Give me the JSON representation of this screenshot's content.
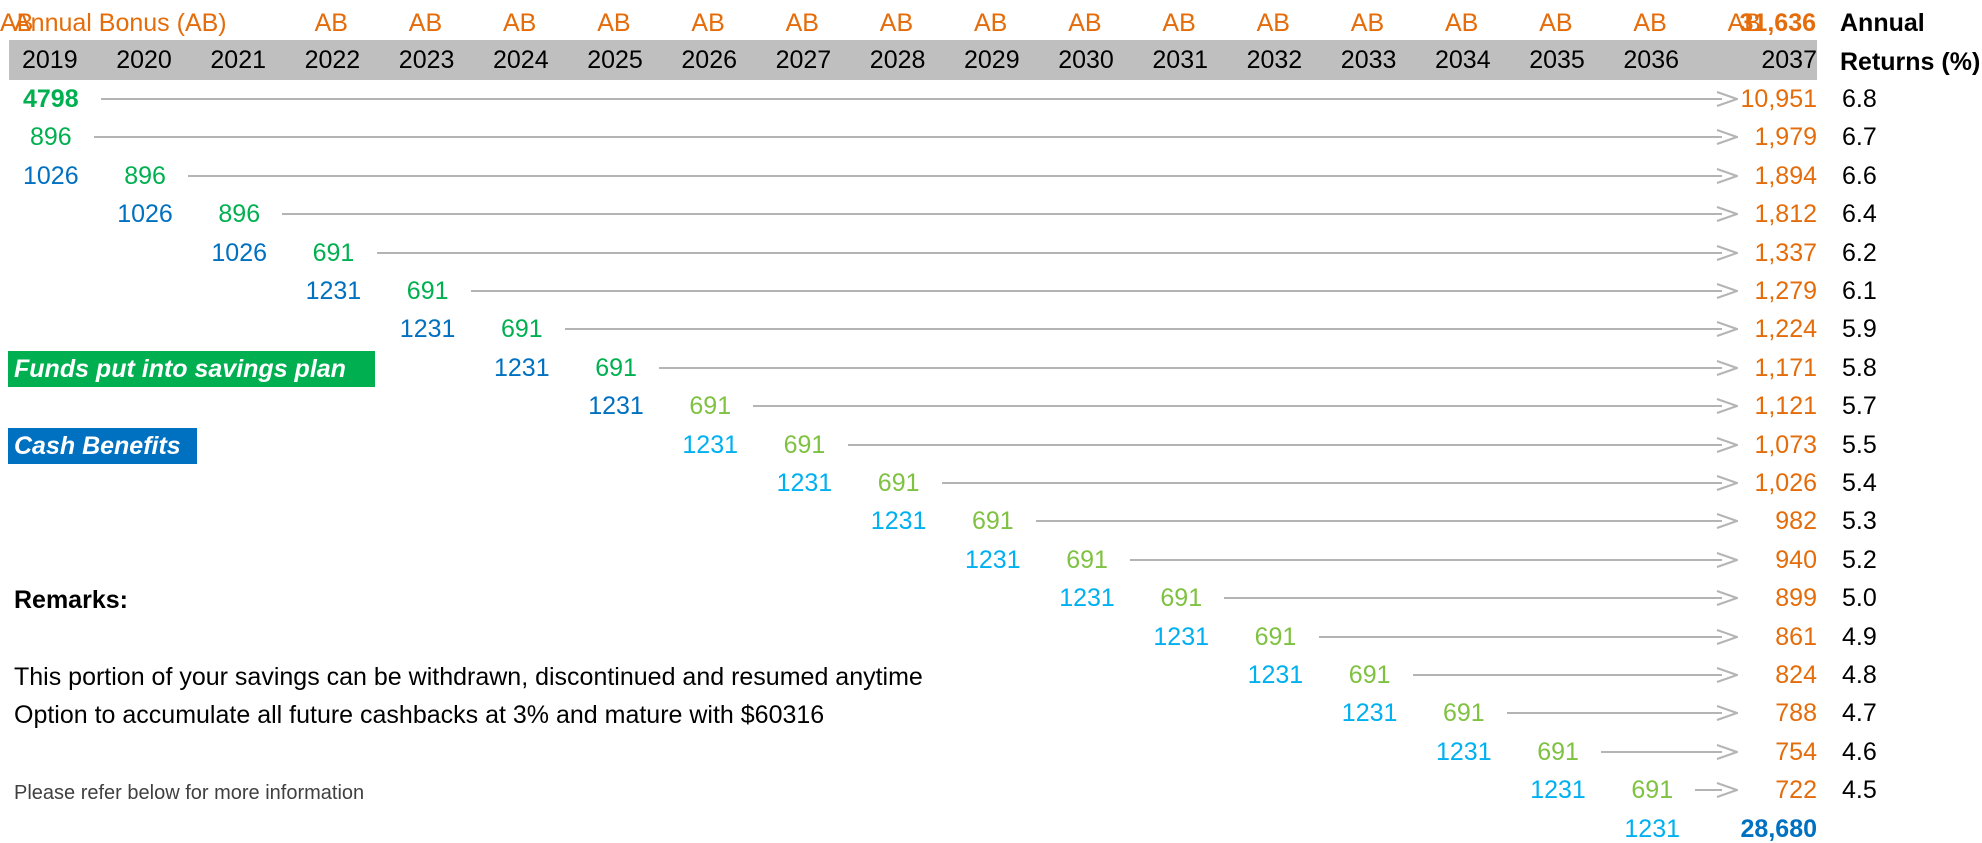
{
  "header": {
    "annual_bonus_label": "Annual Bonus (AB)",
    "ab_labels": [
      "AB",
      "AB",
      "AB",
      "AB",
      "AB",
      "AB",
      "AB",
      "AB",
      "AB",
      "AB",
      "AB",
      "AB",
      "AB",
      "AB",
      "AB",
      "AB",
      "AB"
    ],
    "total_top": "31,636",
    "returns_label_1": "Annual",
    "returns_label_2": "Returns (%)"
  },
  "years": [
    "2019",
    "2020",
    "2021",
    "2022",
    "2023",
    "2024",
    "2025",
    "2026",
    "2027",
    "2028",
    "2029",
    "2030",
    "2031",
    "2032",
    "2033",
    "2034",
    "2035",
    "2036",
    "2037"
  ],
  "rows": [
    {
      "cells": [
        {
          "col": 0,
          "text": "4798",
          "color": "green",
          "bold": true
        }
      ],
      "result": "10,951",
      "rate": "6.8"
    },
    {
      "cells": [
        {
          "col": 0,
          "text": "896",
          "color": "green"
        }
      ],
      "result": "1,979",
      "rate": "6.7"
    },
    {
      "cells": [
        {
          "col": 0,
          "text": "1026",
          "color": "blue"
        },
        {
          "col": 1,
          "text": "896",
          "color": "green"
        }
      ],
      "result": "1,894",
      "rate": "6.6"
    },
    {
      "cells": [
        {
          "col": 1,
          "text": "1026",
          "color": "blue"
        },
        {
          "col": 2,
          "text": "896",
          "color": "green"
        }
      ],
      "result": "1,812",
      "rate": "6.4"
    },
    {
      "cells": [
        {
          "col": 2,
          "text": "1026",
          "color": "blue"
        },
        {
          "col": 3,
          "text": "691",
          "color": "green"
        }
      ],
      "result": "1,337",
      "rate": "6.2"
    },
    {
      "cells": [
        {
          "col": 3,
          "text": "1231",
          "color": "blue"
        },
        {
          "col": 4,
          "text": "691",
          "color": "green"
        }
      ],
      "result": "1,279",
      "rate": "6.1"
    },
    {
      "cells": [
        {
          "col": 4,
          "text": "1231",
          "color": "blue"
        },
        {
          "col": 5,
          "text": "691",
          "color": "green"
        }
      ],
      "result": "1,224",
      "rate": "5.9"
    },
    {
      "cells": [
        {
          "col": 5,
          "text": "1231",
          "color": "blue"
        },
        {
          "col": 6,
          "text": "691",
          "color": "green"
        }
      ],
      "result": "1,171",
      "rate": "5.8"
    },
    {
      "cells": [
        {
          "col": 6,
          "text": "1231",
          "color": "blue"
        },
        {
          "col": 7,
          "text": "691",
          "color": "lgreen"
        }
      ],
      "result": "1,121",
      "rate": "5.7"
    },
    {
      "cells": [
        {
          "col": 7,
          "text": "1231",
          "color": "lblue"
        },
        {
          "col": 8,
          "text": "691",
          "color": "lgreen"
        }
      ],
      "result": "1,073",
      "rate": "5.5"
    },
    {
      "cells": [
        {
          "col": 8,
          "text": "1231",
          "color": "lblue"
        },
        {
          "col": 9,
          "text": "691",
          "color": "lgreen"
        }
      ],
      "result": "1,026",
      "rate": "5.4"
    },
    {
      "cells": [
        {
          "col": 9,
          "text": "1231",
          "color": "lblue"
        },
        {
          "col": 10,
          "text": "691",
          "color": "lgreen"
        }
      ],
      "result": "982",
      "rate": "5.3"
    },
    {
      "cells": [
        {
          "col": 10,
          "text": "1231",
          "color": "lblue"
        },
        {
          "col": 11,
          "text": "691",
          "color": "lgreen"
        }
      ],
      "result": "940",
      "rate": "5.2"
    },
    {
      "cells": [
        {
          "col": 11,
          "text": "1231",
          "color": "lblue"
        },
        {
          "col": 12,
          "text": "691",
          "color": "lgreen"
        }
      ],
      "result": "899",
      "rate": "5.0"
    },
    {
      "cells": [
        {
          "col": 12,
          "text": "1231",
          "color": "lblue"
        },
        {
          "col": 13,
          "text": "691",
          "color": "lgreen"
        }
      ],
      "result": "861",
      "rate": "4.9"
    },
    {
      "cells": [
        {
          "col": 13,
          "text": "1231",
          "color": "lblue"
        },
        {
          "col": 14,
          "text": "691",
          "color": "lgreen"
        }
      ],
      "result": "824",
      "rate": "4.8"
    },
    {
      "cells": [
        {
          "col": 14,
          "text": "1231",
          "color": "lblue"
        },
        {
          "col": 15,
          "text": "691",
          "color": "lgreen"
        }
      ],
      "result": "788",
      "rate": "4.7"
    },
    {
      "cells": [
        {
          "col": 15,
          "text": "1231",
          "color": "lblue"
        },
        {
          "col": 16,
          "text": "691",
          "color": "lgreen"
        }
      ],
      "result": "754",
      "rate": "4.6"
    },
    {
      "cells": [
        {
          "col": 16,
          "text": "1231",
          "color": "lblue"
        },
        {
          "col": 17,
          "text": "691",
          "color": "lgreen"
        }
      ],
      "result": "722",
      "rate": "4.5"
    }
  ],
  "final_row": {
    "cell": "1231",
    "total": "28,680"
  },
  "legend": {
    "funds": "Funds put into savings plan",
    "cash": "Cash Benefits"
  },
  "remarks": {
    "title": "Remarks:",
    "line1": "This portion of your savings can be withdrawn, discontinued and resumed anytime",
    "line2": "Option to accumulate all future cashbacks at 3% and mature with $60316",
    "note": "Please refer below for more information"
  },
  "colors": {
    "orange": "#e46c0a",
    "green": "#00b050",
    "blue": "#0070c0",
    "lgreen": "#7fc241",
    "lblue": "#00b0f0",
    "year_bar": "#bfbfbf",
    "arrow": "#b4b4b4"
  }
}
